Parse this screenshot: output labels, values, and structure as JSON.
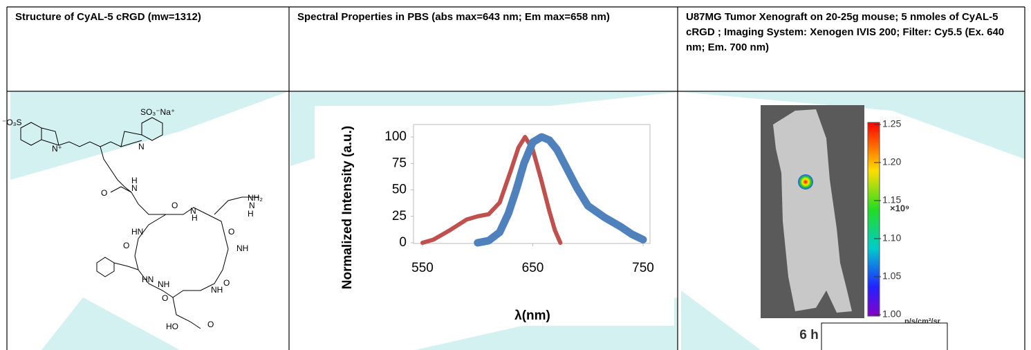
{
  "table": {
    "headers": [
      "Structure of  CyAL-5 cRGD (mw=1312)",
      "Spectral Properties in PBS (abs max=643 nm; Em max=658 nm)",
      "U87MG Tumor Xenograft on 20-25g mouse; 5 nmoles of CyAL-5 cRGD ; Imaging System: Xenogen IVIS 200; Filter: Cy5.5 (Ex. 640 nm; Em. 700 nm)"
    ]
  },
  "structure": {
    "labels": [
      "⁻O₃S",
      "SO₃⁻Na⁺",
      "N⁺",
      "N",
      "O",
      "H",
      "N",
      "O",
      "N",
      "H",
      "NH₂",
      "N",
      "H",
      "NH",
      "HN",
      "O",
      "NH",
      "O",
      "HN",
      "O",
      "NH",
      "O",
      "O",
      "HO"
    ]
  },
  "chart_data": {
    "type": "line",
    "ylabel": "Normalized Intensity (a.u.)",
    "xlabel": "λ(nm)",
    "xlim": [
      550,
      750
    ],
    "xticks": [
      550,
      650,
      750
    ],
    "ylim": [
      0,
      100
    ],
    "yticks": [
      0,
      25,
      50,
      75,
      100
    ],
    "series": [
      {
        "color": "#c0504d",
        "x": [
          550,
          560,
          575,
          590,
          600,
          610,
          620,
          630,
          637,
          643,
          650,
          657,
          665,
          670,
          675
        ],
        "values": [
          0,
          3,
          12,
          22,
          25,
          27,
          38,
          68,
          90,
          100,
          88,
          62,
          30,
          12,
          0
        ]
      },
      {
        "color": "#4f81bd",
        "x": [
          600,
          610,
          620,
          628,
          635,
          642,
          650,
          658,
          665,
          672,
          680,
          690,
          700,
          715,
          730,
          740,
          750
        ],
        "values": [
          0,
          2,
          10,
          28,
          50,
          75,
          95,
          100,
          97,
          88,
          72,
          52,
          35,
          24,
          15,
          8,
          3
        ]
      }
    ]
  },
  "image": {
    "caption": "6 h",
    "multiplier": "×10⁹",
    "unit": "p/s/cm²/sr",
    "colorbar_ticks": [
      {
        "value": 1.25,
        "label": "1.25"
      },
      {
        "value": 1.2,
        "label": "1.20"
      },
      {
        "value": 1.15,
        "label": "1.15"
      },
      {
        "value": 1.1,
        "label": "1.10"
      },
      {
        "value": 1.05,
        "label": "1.05"
      },
      {
        "value": 1.0,
        "label": "1.00"
      }
    ],
    "colorbar_range": [
      1.0,
      1.25
    ]
  }
}
